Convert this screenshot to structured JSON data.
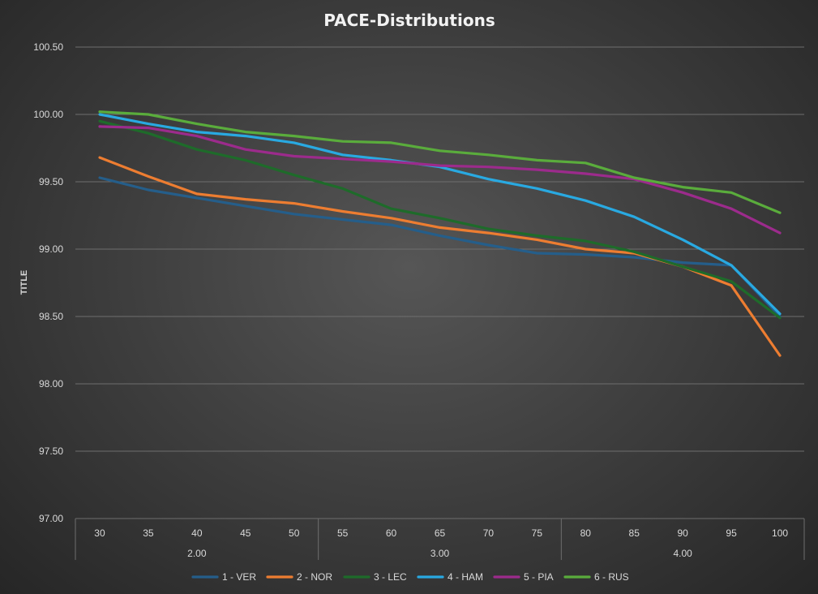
{
  "chart_data": {
    "type": "line",
    "title": "PACE-Distributions",
    "ylabel": "TITLE",
    "xlabel": "",
    "ylim": [
      97.0,
      100.5
    ],
    "yticks": [
      "97.00",
      "97.50",
      "98.00",
      "98.50",
      "99.00",
      "99.50",
      "100.00",
      "100.50"
    ],
    "categories": [
      "30",
      "35",
      "40",
      "45",
      "50",
      "55",
      "60",
      "65",
      "70",
      "75",
      "80",
      "85",
      "90",
      "95",
      "100"
    ],
    "groups": [
      {
        "label": "2.00",
        "count": 5
      },
      {
        "label": "3.00",
        "count": 5
      },
      {
        "label": "4.00",
        "count": 5
      }
    ],
    "grid": true,
    "legend": "bottom",
    "series": [
      {
        "name": "1 - VER",
        "color": "#255e8a",
        "values": [
          99.53,
          99.44,
          99.38,
          99.32,
          99.26,
          99.22,
          99.18,
          99.1,
          99.03,
          98.97,
          98.96,
          98.94,
          98.9,
          98.88,
          98.5
        ]
      },
      {
        "name": "2 - NOR",
        "color": "#ed7d31",
        "values": [
          99.68,
          99.54,
          99.41,
          99.37,
          99.34,
          99.28,
          99.23,
          99.16,
          99.12,
          99.07,
          99.0,
          98.97,
          98.87,
          98.73,
          98.21
        ]
      },
      {
        "name": "3 - LEC",
        "color": "#1e6b2a",
        "values": [
          99.95,
          99.86,
          99.74,
          99.66,
          99.55,
          99.45,
          99.3,
          99.23,
          99.15,
          99.1,
          99.06,
          98.98,
          98.87,
          98.76,
          98.49
        ]
      },
      {
        "name": "4 - HAM",
        "color": "#29a9e1",
        "values": [
          100.0,
          99.93,
          99.87,
          99.84,
          99.79,
          99.7,
          99.66,
          99.61,
          99.52,
          99.45,
          99.36,
          99.24,
          99.07,
          98.88,
          98.52
        ]
      },
      {
        "name": "5 - PIA",
        "color": "#9c2b8c",
        "values": [
          99.91,
          99.9,
          99.84,
          99.74,
          99.69,
          99.67,
          99.65,
          99.62,
          99.61,
          99.59,
          99.56,
          99.52,
          99.42,
          99.3,
          99.12
        ]
      },
      {
        "name": "6 - RUS",
        "color": "#5aac3c",
        "values": [
          100.02,
          100.0,
          99.93,
          99.87,
          99.84,
          99.8,
          99.79,
          99.73,
          99.7,
          99.66,
          99.64,
          99.53,
          99.46,
          99.42,
          99.27
        ]
      }
    ]
  }
}
